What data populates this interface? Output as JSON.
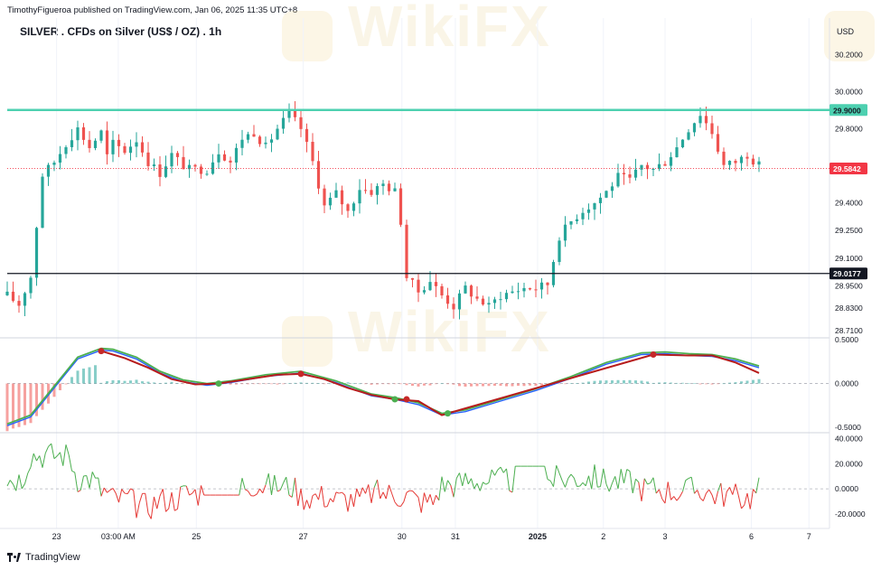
{
  "header": {
    "publisher": "TimothyFigueroa published on TradingView.com, Jan 06, 2025 11:35 UTC+8",
    "symbol": "SILVER . CFDs on Silver (US$ / OZ) . 1h",
    "currency": "USD"
  },
  "footer": {
    "brand": "TradingView"
  },
  "watermark": {
    "text": "WikiFX"
  },
  "colors": {
    "bull": "#26a69a",
    "bear": "#ef5350",
    "resistance": "#4dd0b0",
    "support": "#131722",
    "current": "#f23645",
    "macd": "#4caf50",
    "signal": "#b71c1c",
    "macd_blue": "#2962ff"
  },
  "chart_data": {
    "type": "candlestick",
    "x_ticks": [
      "23",
      "03:00 AM",
      "25",
      "27",
      "30",
      "31",
      "2025",
      "2",
      "3",
      "6",
      "7"
    ],
    "price_axis": {
      "ticks": [
        "30.2000",
        "30.0000",
        "29.8000",
        "29.4000",
        "29.2500",
        "29.1000",
        "28.9500",
        "28.8300",
        "28.7100"
      ],
      "ylim": [
        28.68,
        30.25
      ]
    },
    "resistance": {
      "value": 29.9,
      "label": "29.9000"
    },
    "support": {
      "value": 29.0177,
      "label": "29.0177"
    },
    "last_price": {
      "value": 29.5842,
      "label": "29.5842"
    },
    "price_path": [
      [
        0,
        28.9
      ],
      [
        2,
        28.85
      ],
      [
        4,
        29.0
      ],
      [
        6,
        29.55
      ],
      [
        8,
        29.62
      ],
      [
        10,
        29.72
      ],
      [
        12,
        29.8
      ],
      [
        14,
        29.7
      ],
      [
        16,
        29.78
      ],
      [
        17,
        29.65
      ],
      [
        18,
        29.72
      ],
      [
        20,
        29.68
      ],
      [
        22,
        29.74
      ],
      [
        24,
        29.62
      ],
      [
        26,
        29.56
      ],
      [
        28,
        29.66
      ],
      [
        30,
        29.6
      ],
      [
        31,
        29.58
      ],
      [
        34,
        29.58
      ],
      [
        36,
        29.68
      ],
      [
        38,
        29.62
      ],
      [
        40,
        29.75
      ],
      [
        42,
        29.78
      ],
      [
        44,
        29.7
      ],
      [
        46,
        29.8
      ],
      [
        48,
        29.88
      ],
      [
        50,
        29.8
      ],
      [
        52,
        29.62
      ],
      [
        54,
        29.38
      ],
      [
        56,
        29.45
      ],
      [
        58,
        29.35
      ],
      [
        60,
        29.48
      ],
      [
        62,
        29.46
      ],
      [
        64,
        29.5
      ],
      [
        66,
        29.46
      ],
      [
        67,
        29.3
      ],
      [
        68,
        29.0
      ],
      [
        70,
        28.92
      ],
      [
        72,
        28.98
      ],
      [
        74,
        28.9
      ],
      [
        76,
        28.84
      ],
      [
        78,
        28.94
      ],
      [
        80,
        28.88
      ],
      [
        82,
        28.84
      ],
      [
        84,
        28.9
      ],
      [
        86,
        28.92
      ],
      [
        88,
        28.94
      ],
      [
        90,
        28.94
      ],
      [
        92,
        28.96
      ],
      [
        94,
        29.22
      ],
      [
        96,
        29.3
      ],
      [
        98,
        29.36
      ],
      [
        100,
        29.4
      ],
      [
        102,
        29.46
      ],
      [
        104,
        29.54
      ],
      [
        106,
        29.52
      ],
      [
        108,
        29.6
      ],
      [
        110,
        29.58
      ],
      [
        112,
        29.62
      ],
      [
        114,
        29.7
      ],
      [
        116,
        29.8
      ],
      [
        118,
        29.88
      ],
      [
        120,
        29.78
      ],
      [
        122,
        29.6
      ],
      [
        124,
        29.62
      ],
      [
        126,
        29.66
      ],
      [
        128,
        29.6
      ]
    ],
    "macd": {
      "ticks": [
        "0.5000",
        "0.0000",
        "-0.5000"
      ],
      "ylim": [
        -0.55,
        0.5
      ],
      "macd_line": [
        [
          0,
          -0.48
        ],
        [
          4,
          -0.38
        ],
        [
          8,
          -0.05
        ],
        [
          12,
          0.28
        ],
        [
          16,
          0.38
        ],
        [
          18,
          0.37
        ],
        [
          22,
          0.28
        ],
        [
          26,
          0.12
        ],
        [
          30,
          0.02
        ],
        [
          34,
          -0.02
        ],
        [
          38,
          0.01
        ],
        [
          44,
          0.08
        ],
        [
          50,
          0.12
        ],
        [
          56,
          0.01
        ],
        [
          62,
          -0.14
        ],
        [
          66,
          -0.18
        ],
        [
          70,
          -0.24
        ],
        [
          74,
          -0.36
        ],
        [
          78,
          -0.32
        ],
        [
          84,
          -0.2
        ],
        [
          90,
          -0.08
        ],
        [
          96,
          0.06
        ],
        [
          102,
          0.22
        ],
        [
          108,
          0.33
        ],
        [
          112,
          0.34
        ],
        [
          116,
          0.32
        ],
        [
          120,
          0.31
        ],
        [
          124,
          0.26
        ],
        [
          128,
          0.18
        ]
      ],
      "signal_line": [
        [
          16,
          0.37
        ],
        [
          20,
          0.29
        ],
        [
          24,
          0.18
        ],
        [
          28,
          0.05
        ],
        [
          32,
          -0.01
        ],
        [
          36,
          0.0
        ],
        [
          40,
          0.04
        ],
        [
          46,
          0.1
        ],
        [
          50,
          0.11
        ],
        [
          54,
          0.05
        ],
        [
          58,
          -0.05
        ],
        [
          62,
          -0.13
        ],
        [
          66,
          -0.18
        ],
        [
          70,
          -0.2
        ],
        [
          74,
          -0.36
        ],
        [
          110,
          0.33
        ],
        [
          116,
          0.32
        ],
        [
          120,
          0.32
        ],
        [
          124,
          0.24
        ],
        [
          128,
          0.12
        ]
      ],
      "cross_points": [
        [
          16,
          0.37
        ],
        [
          36,
          0.0
        ],
        [
          50,
          0.11
        ],
        [
          66,
          -0.18
        ],
        [
          68,
          -0.18
        ],
        [
          75,
          -0.34
        ],
        [
          110,
          0.33
        ]
      ],
      "cross_colors": [
        "red",
        "green",
        "red",
        "green",
        "red",
        "green",
        "red"
      ]
    },
    "oscillator": {
      "ticks": [
        "40.0000",
        "20.0000",
        "0.0000",
        "-20.0000"
      ],
      "ylim": [
        -28,
        44
      ],
      "zero_line": 0
    }
  }
}
